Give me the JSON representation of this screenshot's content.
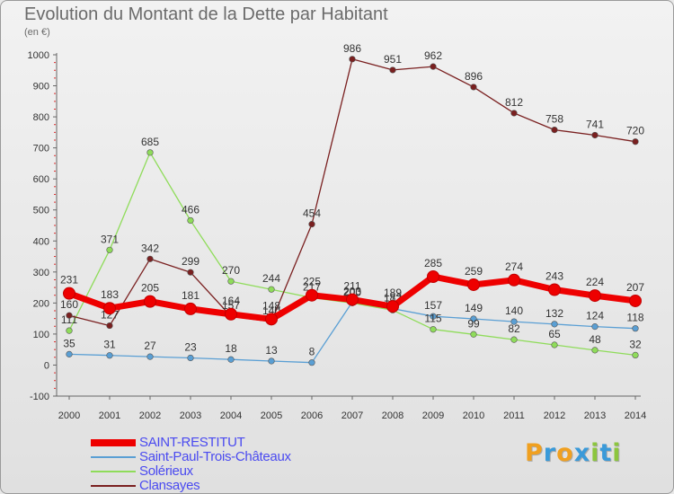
{
  "header": {
    "title": "Evolution du Montant de la Dette par Habitant",
    "subtitle": "(en €)"
  },
  "logo": {
    "text": "Proxiti",
    "letters": [
      {
        "ch": "P",
        "color": "#f0a020"
      },
      {
        "ch": "r",
        "color": "#3a9ad9"
      },
      {
        "ch": "o",
        "color": "#f0a020"
      },
      {
        "ch": "x",
        "color": "#3a9ad9"
      },
      {
        "ch": "i",
        "color": "#8cc63e"
      },
      {
        "ch": "t",
        "color": "#3a9ad9"
      },
      {
        "ch": "i",
        "color": "#8cc63e"
      }
    ]
  },
  "chart_data": {
    "type": "line",
    "title": "Evolution du Montant de la Dette par Habitant",
    "subtitle": "(en €)",
    "x": [
      "2000",
      "2001",
      "2002",
      "2003",
      "2004",
      "2005",
      "2006",
      "2007",
      "2008",
      "2009",
      "2010",
      "2011",
      "2012",
      "2013",
      "2014"
    ],
    "ylim": [
      -100,
      1000
    ],
    "yticks": [
      -100,
      0,
      100,
      200,
      300,
      400,
      500,
      600,
      700,
      800,
      900,
      1000
    ],
    "grid": false,
    "legend_position": "bottom-left",
    "series": [
      {
        "name": "SAINT-RESTITUT",
        "color": "#ee0000",
        "emphasis": true,
        "values": [
          231,
          183,
          205,
          181,
          164,
          148,
          225,
          211,
          189,
          285,
          259,
          274,
          243,
          224,
          207
        ]
      },
      {
        "name": "Saint-Paul-Trois-Châteaux",
        "color": "#5a9fd4",
        "emphasis": false,
        "values": [
          35,
          31,
          27,
          23,
          18,
          13,
          8,
          203,
          182,
          157,
          149,
          140,
          132,
          124,
          118
        ]
      },
      {
        "name": "Solérieux",
        "color": "#8fdc5a",
        "emphasis": false,
        "values": [
          111,
          371,
          685,
          466,
          270,
          244,
          217,
          200,
          177,
          115,
          99,
          82,
          65,
          48,
          32
        ]
      },
      {
        "name": "Clansayes",
        "color": "#7a2020",
        "emphasis": false,
        "values": [
          160,
          127,
          342,
          299,
          157,
          140,
          454,
          986,
          951,
          962,
          896,
          812,
          758,
          741,
          720
        ]
      }
    ]
  }
}
